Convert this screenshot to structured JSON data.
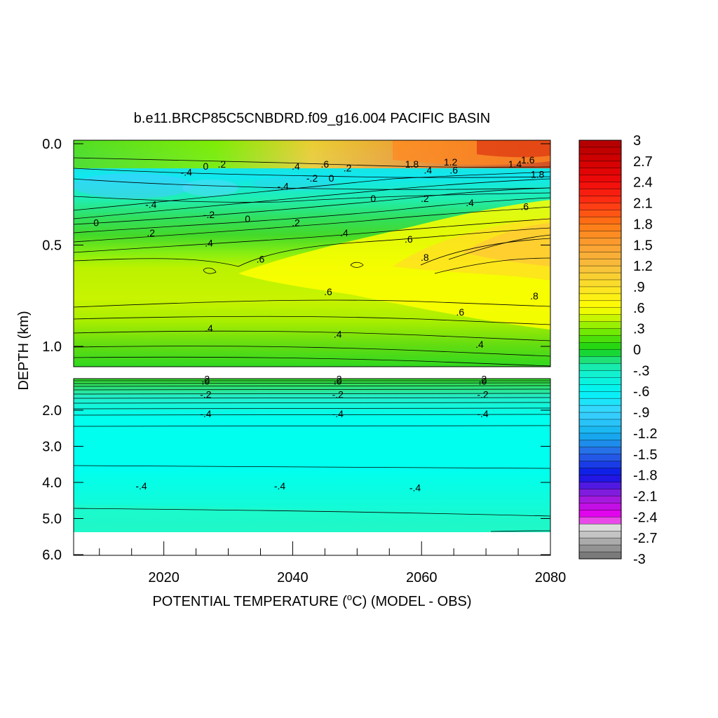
{
  "chart_data": {
    "type": "heatmap",
    "subtype": "filled-contour",
    "title": "b.e11.BRCP85C5CNBDRD.f09_g16.004 PACIFIC BASIN",
    "xlabel_prefix": "POTENTIAL TEMPERATURE (",
    "xlabel_unit_sup": "o",
    "xlabel_suffix": "C) (MODEL - OBS)",
    "ylabel": "DEPTH (km)",
    "x_range": [
      2006,
      2080
    ],
    "x_ticks": [
      2020,
      2040,
      2060,
      2080
    ],
    "x_tick_labels": [
      "2020",
      "2040",
      "2060",
      "2080"
    ],
    "panels": [
      {
        "name": "upper",
        "depth_range_km": [
          0.0,
          1.1
        ],
        "y_ticks": [
          0.0,
          0.5,
          1.0
        ],
        "y_tick_labels": [
          "0.0",
          "0.5",
          "1.0"
        ]
      },
      {
        "name": "lower",
        "depth_range_km": [
          1.1,
          6.0
        ],
        "y_ticks": [
          2.0,
          3.0,
          4.0,
          5.0,
          6.0
        ],
        "y_tick_labels": [
          "2.0",
          "3.0",
          "4.0",
          "5.0",
          "6.0"
        ]
      }
    ],
    "colorbar": {
      "min": -3,
      "max": 3,
      "labels": [
        "3",
        "2.7",
        "2.4",
        "2.1",
        "1.8",
        "1.5",
        "1.2",
        ".9",
        ".6",
        ".3",
        "0",
        "-.3",
        "-.6",
        "-.9",
        "-1.2",
        "-1.5",
        "-1.8",
        "-2.1",
        "-2.4",
        "-2.7",
        "-3"
      ]
    },
    "contour_labels": [
      {
        "text": "0",
        "year": 2009.5,
        "depth": 0.39
      },
      {
        "text": ".2",
        "year": 2018,
        "depth": 0.44
      },
      {
        "text": "-.4",
        "year": 2018,
        "depth": 0.3
      },
      {
        "text": "-.2",
        "year": 2027,
        "depth": 0.35
      },
      {
        "text": "0",
        "year": 2033,
        "depth": 0.37
      },
      {
        "text": ".2",
        "year": 2040.5,
        "depth": 0.39
      },
      {
        "text": ".4",
        "year": 2027,
        "depth": 0.49
      },
      {
        "text": ".4",
        "year": 2048,
        "depth": 0.44
      },
      {
        "text": ".6",
        "year": 2035,
        "depth": 0.57
      },
      {
        "text": ".6",
        "year": 2058,
        "depth": 0.47
      },
      {
        "text": ".8",
        "year": 2060.5,
        "depth": 0.56
      },
      {
        "text": ".6",
        "year": 2045.5,
        "depth": 0.73
      },
      {
        "text": ".8",
        "year": 2077.5,
        "depth": 0.75
      },
      {
        "text": ".6",
        "year": 2066,
        "depth": 0.83
      },
      {
        "text": ".4",
        "year": 2027,
        "depth": 0.91
      },
      {
        "text": ".4",
        "year": 2047,
        "depth": 0.94
      },
      {
        "text": ".4",
        "year": 2069,
        "depth": 0.99
      },
      {
        "text": "-.4",
        "year": 2023.5,
        "depth": 0.14
      },
      {
        "text": "0",
        "year": 2026.5,
        "depth": 0.11
      },
      {
        "text": ".2",
        "year": 2029,
        "depth": 0.1
      },
      {
        "text": ".4",
        "year": 2040.5,
        "depth": 0.11
      },
      {
        "text": ".6",
        "year": 2045,
        "depth": 0.1
      },
      {
        "text": "-.4",
        "year": 2038.5,
        "depth": 0.21
      },
      {
        "text": "-.2",
        "year": 2043,
        "depth": 0.17
      },
      {
        "text": "0",
        "year": 2046,
        "depth": 0.17
      },
      {
        "text": ".2",
        "year": 2048.5,
        "depth": 0.12
      },
      {
        "text": "0",
        "year": 2052.5,
        "depth": 0.27
      },
      {
        "text": "1.8",
        "year": 2058.5,
        "depth": 0.1
      },
      {
        "text": ".4",
        "year": 2061,
        "depth": 0.13
      },
      {
        "text": "1.2",
        "year": 2064.5,
        "depth": 0.09
      },
      {
        "text": ".6",
        "year": 2065,
        "depth": 0.13
      },
      {
        "text": ".2",
        "year": 2060.5,
        "depth": 0.27
      },
      {
        "text": ".4",
        "year": 2067.5,
        "depth": 0.29
      },
      {
        "text": "1.4",
        "year": 2074.5,
        "depth": 0.1
      },
      {
        "text": "1.6",
        "year": 2076.5,
        "depth": 0.08
      },
      {
        "text": "1.8",
        "year": 2078,
        "depth": 0.15
      },
      {
        "text": ".6",
        "year": 2076,
        "depth": 0.31
      },
      {
        "text": ".2",
        "year": 2026.5,
        "depth": 1.14
      },
      {
        "text": ".0",
        "year": 2026.5,
        "depth": 1.19
      },
      {
        "text": "-.2",
        "year": 2026.5,
        "depth": 1.56
      },
      {
        "text": "-.4",
        "year": 2026.5,
        "depth": 2.1
      },
      {
        "text": ".2",
        "year": 2047,
        "depth": 1.14
      },
      {
        "text": ".0",
        "year": 2047,
        "depth": 1.19
      },
      {
        "text": "-.2",
        "year": 2047,
        "depth": 1.56
      },
      {
        "text": "-.4",
        "year": 2047,
        "depth": 2.1
      },
      {
        "text": ".2",
        "year": 2069.5,
        "depth": 1.14
      },
      {
        "text": ".0",
        "year": 2069.5,
        "depth": 1.19
      },
      {
        "text": "-.2",
        "year": 2069.5,
        "depth": 1.56
      },
      {
        "text": "-.4",
        "year": 2069.5,
        "depth": 2.1
      },
      {
        "text": "-.4",
        "year": 2016.5,
        "depth": 4.1
      },
      {
        "text": "-.4",
        "year": 2038,
        "depth": 4.1
      },
      {
        "text": "-.4",
        "year": 2059,
        "depth": 4.15
      }
    ]
  }
}
